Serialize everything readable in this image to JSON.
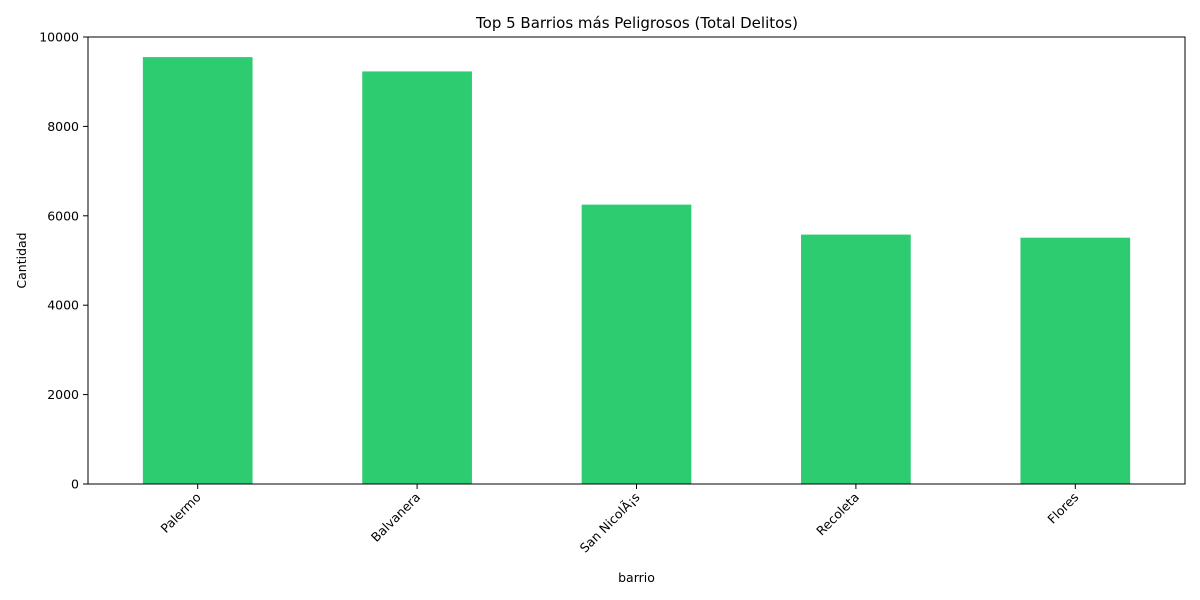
{
  "chart_data": {
    "type": "bar",
    "title": "Top 5 Barrios más Peligrosos (Total Delitos)",
    "xlabel": "barrio",
    "ylabel": "Cantidad",
    "categories": [
      "Palermo",
      "Balvanera",
      "San NicolÃ¡s",
      "Recoleta",
      "Flores"
    ],
    "values": [
      9550,
      9230,
      6250,
      5580,
      5510
    ],
    "ylim": [
      0,
      10000
    ],
    "yticks": [
      0,
      2000,
      4000,
      6000,
      8000,
      10000
    ],
    "bar_color": "#2ecc71",
    "grid": false,
    "x_tick_rotation": 45
  }
}
